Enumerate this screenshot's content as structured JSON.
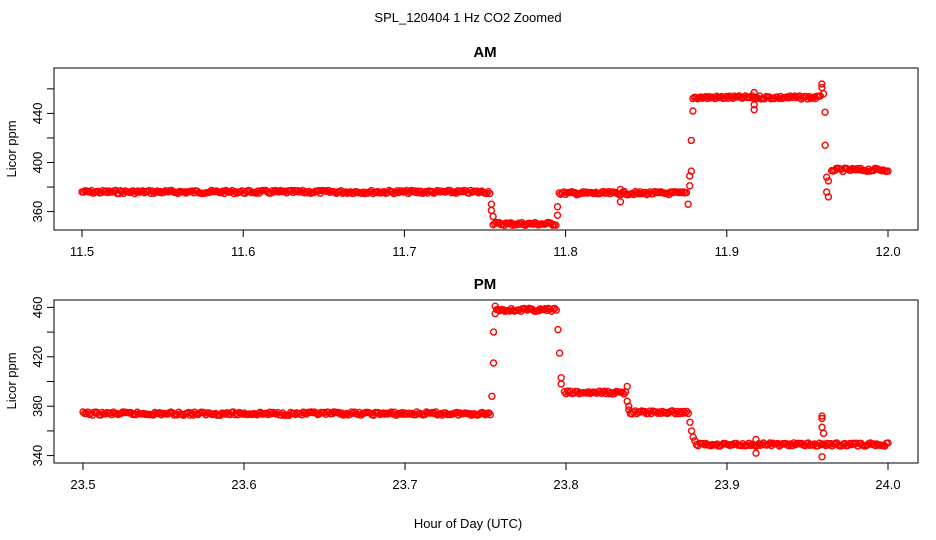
{
  "figure": {
    "title": "SPL_120404  1 Hz CO2 Zoomed",
    "xlabel": "Hour of Day (UTC)"
  },
  "chart_data": [
    {
      "type": "scatter",
      "title": "AM",
      "ylabel": "Licor ppm",
      "xlim": [
        11.5,
        12.0
      ],
      "ylim": [
        345,
        477
      ],
      "xticks": [
        "11.5",
        "11.6",
        "11.7",
        "11.8",
        "11.9",
        "12.0"
      ],
      "yticks": [
        "360",
        "400",
        "440"
      ],
      "color": "#ff0000",
      "segments": [
        {
          "x0": 11.5,
          "x1": 11.753,
          "y": 376
        },
        {
          "x0": 11.755,
          "x1": 11.794,
          "y": 350
        },
        {
          "x0": 11.796,
          "x1": 11.875,
          "y": 375
        },
        {
          "x0": 11.879,
          "x1": 11.958,
          "y": 453
        },
        {
          "x0": 11.965,
          "x1": 12.0,
          "y": 394
        }
      ],
      "outliers": [
        {
          "x": 11.754,
          "y": 366
        },
        {
          "x": 11.754,
          "y": 361
        },
        {
          "x": 11.755,
          "y": 356
        },
        {
          "x": 11.795,
          "y": 357
        },
        {
          "x": 11.795,
          "y": 364
        },
        {
          "x": 11.834,
          "y": 378
        },
        {
          "x": 11.834,
          "y": 368
        },
        {
          "x": 11.876,
          "y": 366
        },
        {
          "x": 11.877,
          "y": 381
        },
        {
          "x": 11.877,
          "y": 389
        },
        {
          "x": 11.878,
          "y": 393
        },
        {
          "x": 11.878,
          "y": 418
        },
        {
          "x": 11.879,
          "y": 442
        },
        {
          "x": 11.917,
          "y": 457
        },
        {
          "x": 11.917,
          "y": 447
        },
        {
          "x": 11.917,
          "y": 443
        },
        {
          "x": 11.959,
          "y": 464
        },
        {
          "x": 11.959,
          "y": 461
        },
        {
          "x": 11.96,
          "y": 456
        },
        {
          "x": 11.961,
          "y": 441
        },
        {
          "x": 11.961,
          "y": 414
        },
        {
          "x": 11.962,
          "y": 388
        },
        {
          "x": 11.962,
          "y": 376
        },
        {
          "x": 11.963,
          "y": 372
        },
        {
          "x": 11.963,
          "y": 385
        }
      ]
    },
    {
      "type": "scatter",
      "title": "PM",
      "ylabel": "Licor ppm",
      "xlim": [
        23.5,
        24.0
      ],
      "ylim": [
        334,
        466
      ],
      "xticks": [
        "23.5",
        "23.6",
        "23.7",
        "23.8",
        "23.9",
        "24.0"
      ],
      "yticks": [
        "340",
        "380",
        "420",
        "460"
      ],
      "color": "#ff0000",
      "segments": [
        {
          "x0": 23.5,
          "x1": 23.753,
          "y": 374
        },
        {
          "x0": 23.757,
          "x1": 23.794,
          "y": 458
        },
        {
          "x0": 23.799,
          "x1": 23.837,
          "y": 391
        },
        {
          "x0": 23.84,
          "x1": 23.876,
          "y": 375
        },
        {
          "x0": 23.881,
          "x1": 24.0,
          "y": 349
        }
      ],
      "outliers": [
        {
          "x": 23.754,
          "y": 388
        },
        {
          "x": 23.755,
          "y": 415
        },
        {
          "x": 23.755,
          "y": 440
        },
        {
          "x": 23.756,
          "y": 455
        },
        {
          "x": 23.756,
          "y": 461
        },
        {
          "x": 23.795,
          "y": 442
        },
        {
          "x": 23.796,
          "y": 423
        },
        {
          "x": 23.797,
          "y": 403
        },
        {
          "x": 23.797,
          "y": 398
        },
        {
          "x": 23.838,
          "y": 396
        },
        {
          "x": 23.838,
          "y": 384
        },
        {
          "x": 23.839,
          "y": 380
        },
        {
          "x": 23.839,
          "y": 377
        },
        {
          "x": 23.877,
          "y": 367
        },
        {
          "x": 23.878,
          "y": 360
        },
        {
          "x": 23.879,
          "y": 355
        },
        {
          "x": 23.88,
          "y": 352
        },
        {
          "x": 23.918,
          "y": 353
        },
        {
          "x": 23.918,
          "y": 342
        },
        {
          "x": 23.959,
          "y": 372
        },
        {
          "x": 23.959,
          "y": 370
        },
        {
          "x": 23.959,
          "y": 363
        },
        {
          "x": 23.96,
          "y": 358
        },
        {
          "x": 23.959,
          "y": 339
        }
      ]
    }
  ]
}
